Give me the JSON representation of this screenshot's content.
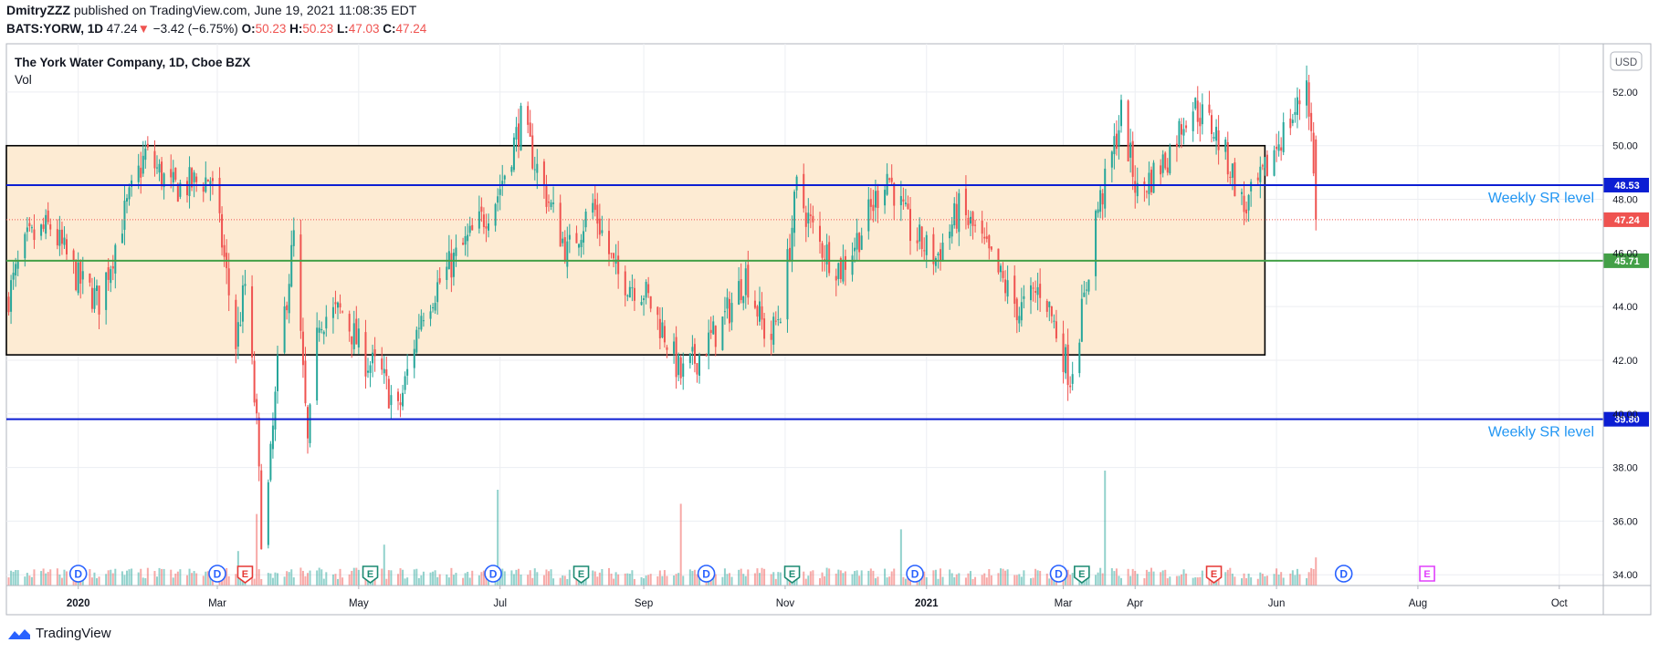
{
  "header": {
    "author": "DmitryZZZ",
    "published_text": "published on TradingView.com, June 19, 2021 11:08:35 EDT",
    "symbol": "BATS:YORW, 1D",
    "last": "47.24",
    "arrow": "▼",
    "change": "−3.42 (−6.75%)",
    "o_label": "O:",
    "o_val": "50.23",
    "h_label": "H:",
    "h_val": "50.23",
    "l_label": "L:",
    "l_val": "47.03",
    "c_label": "C:",
    "c_val": "47.24"
  },
  "footer": {
    "brand": "TradingView"
  },
  "colors": {
    "up": "#26a69a",
    "down": "#ef5350",
    "box_fill": "#fdebd3",
    "blue_line": "#0c1ed3",
    "green_line": "#43a047",
    "sr_text": "#2196f3",
    "event_d": "#2962ff",
    "event_e_green": "#1b8a72",
    "event_e_red": "#e53935",
    "event_e_pink": "#e040fb"
  },
  "chart_data": {
    "type": "candlestick",
    "title": "The York Water Company, 1D, Cboe BZX",
    "subtitle": "Vol",
    "currency": "USD",
    "y_ticks": [
      34.0,
      36.0,
      38.0,
      40.0,
      42.0,
      44.0,
      46.0,
      48.0,
      50.0,
      52.0
    ],
    "ylim": [
      33.6,
      53.8
    ],
    "x_ticks": [
      {
        "label": "2020",
        "date": "2020-01-01"
      },
      {
        "label": "Mar",
        "date": "2020-03-01"
      },
      {
        "label": "May",
        "date": "2020-05-01"
      },
      {
        "label": "Jul",
        "date": "2020-07-01"
      },
      {
        "label": "Sep",
        "date": "2020-09-01"
      },
      {
        "label": "Nov",
        "date": "2020-11-01"
      },
      {
        "label": "2021",
        "date": "2021-01-01"
      },
      {
        "label": "Mar",
        "date": "2021-03-01"
      },
      {
        "label": "Apr",
        "date": "2021-04-01"
      },
      {
        "label": "Jun",
        "date": "2021-06-01"
      },
      {
        "label": "Aug",
        "date": "2021-08-01"
      },
      {
        "label": "Oct",
        "date": "2021-10-01"
      }
    ],
    "xlim": [
      "2019-12-01",
      "2021-10-20"
    ],
    "range_box": {
      "from": "2019-12-01",
      "to": "2021-05-27",
      "low": 42.2,
      "high": 50.0
    },
    "levels": [
      {
        "value": 48.53,
        "label": "48.53",
        "text": "Weekly SR level",
        "color": "#0c1ed3"
      },
      {
        "value": 45.71,
        "label": "45.71",
        "text": "",
        "color": "#43a047"
      },
      {
        "value": 39.8,
        "label": "39.80",
        "text": "Weekly SR level",
        "color": "#0c1ed3"
      }
    ],
    "last_price": {
      "value": 47.24,
      "label": "47.24"
    },
    "price_path": [
      [
        "2019-12-01",
        44.2
      ],
      [
        "2019-12-10",
        46.4
      ],
      [
        "2019-12-20",
        47.0
      ],
      [
        "2020-01-01",
        45.0
      ],
      [
        "2020-01-10",
        44.2
      ],
      [
        "2020-01-20",
        47.2
      ],
      [
        "2020-01-30",
        49.7
      ],
      [
        "2020-02-10",
        48.4
      ],
      [
        "2020-02-20",
        48.6
      ],
      [
        "2020-02-27",
        48.8
      ],
      [
        "2020-03-03",
        46.4
      ],
      [
        "2020-03-09",
        42.6
      ],
      [
        "2020-03-13",
        44.8
      ],
      [
        "2020-03-18",
        39.5
      ],
      [
        "2020-03-20",
        35.6
      ],
      [
        "2020-03-23",
        37.2
      ],
      [
        "2020-03-27",
        41.6
      ],
      [
        "2020-04-03",
        46.6
      ],
      [
        "2020-04-09",
        38.8
      ],
      [
        "2020-04-14",
        43.6
      ],
      [
        "2020-04-24",
        43.8
      ],
      [
        "2020-05-04",
        42.0
      ],
      [
        "2020-05-10",
        41.6
      ],
      [
        "2020-05-18",
        40.0
      ],
      [
        "2020-05-28",
        43.8
      ],
      [
        "2020-06-10",
        45.6
      ],
      [
        "2020-06-20",
        46.8
      ],
      [
        "2020-06-30",
        48.2
      ],
      [
        "2020-07-10",
        50.9
      ],
      [
        "2020-07-20",
        48.4
      ],
      [
        "2020-07-30",
        46.0
      ],
      [
        "2020-08-10",
        47.8
      ],
      [
        "2020-08-20",
        45.2
      ],
      [
        "2020-09-01",
        44.6
      ],
      [
        "2020-09-10",
        43.0
      ],
      [
        "2020-09-17",
        41.4
      ],
      [
        "2020-09-25",
        42.2
      ],
      [
        "2020-10-05",
        43.4
      ],
      [
        "2020-10-15",
        45.2
      ],
      [
        "2020-10-25",
        42.6
      ],
      [
        "2020-10-31",
        44.2
      ],
      [
        "2020-11-06",
        48.4
      ],
      [
        "2020-11-15",
        46.4
      ],
      [
        "2020-11-25",
        45.4
      ],
      [
        "2020-12-05",
        47.0
      ],
      [
        "2020-12-15",
        49.0
      ],
      [
        "2020-12-25",
        46.8
      ],
      [
        "2021-01-05",
        45.8
      ],
      [
        "2021-01-15",
        47.6
      ],
      [
        "2021-01-22",
        46.8
      ],
      [
        "2021-02-01",
        45.2
      ],
      [
        "2021-02-10",
        43.8
      ],
      [
        "2021-02-20",
        44.8
      ],
      [
        "2021-03-01",
        42.2
      ],
      [
        "2021-03-04",
        41.4
      ],
      [
        "2021-03-10",
        44.2
      ],
      [
        "2021-03-15",
        47.4
      ],
      [
        "2021-03-20",
        48.8
      ],
      [
        "2021-03-26",
        51.2
      ],
      [
        "2021-04-02",
        48.2
      ],
      [
        "2021-04-15",
        49.6
      ],
      [
        "2021-04-25",
        51.6
      ],
      [
        "2021-05-05",
        50.6
      ],
      [
        "2021-05-12",
        49.2
      ],
      [
        "2021-05-18",
        47.6
      ],
      [
        "2021-05-25",
        48.6
      ],
      [
        "2021-06-02",
        50.2
      ],
      [
        "2021-06-10",
        51.4
      ],
      [
        "2021-06-14",
        52.6
      ],
      [
        "2021-06-16",
        50.4
      ],
      [
        "2021-06-18",
        47.24
      ]
    ],
    "volume_spikes": [
      {
        "date": "2020-03-10",
        "value": 0.27
      },
      {
        "date": "2020-03-18",
        "value": 0.56
      },
      {
        "date": "2020-05-12",
        "value": 0.32
      },
      {
        "date": "2020-06-20",
        "value": 0.55
      },
      {
        "date": "2020-06-30",
        "value": 0.75
      },
      {
        "date": "2020-09-17",
        "value": 0.64
      },
      {
        "date": "2020-12-21",
        "value": 0.44
      },
      {
        "date": "2021-03-19",
        "value": 0.9
      },
      {
        "date": "2021-06-18",
        "value": 0.22
      }
    ],
    "events": [
      {
        "label": "D",
        "date": "2020-01-01",
        "kind": "d"
      },
      {
        "label": "D",
        "date": "2020-03-01",
        "kind": "d"
      },
      {
        "label": "E",
        "date": "2020-03-13",
        "kind": "e-red"
      },
      {
        "label": "E",
        "date": "2020-05-06",
        "kind": "e-green"
      },
      {
        "label": "D",
        "date": "2020-06-28",
        "kind": "d"
      },
      {
        "label": "E",
        "date": "2020-08-05",
        "kind": "e-green"
      },
      {
        "label": "D",
        "date": "2020-09-28",
        "kind": "d"
      },
      {
        "label": "E",
        "date": "2020-11-04",
        "kind": "e-green"
      },
      {
        "label": "D",
        "date": "2020-12-27",
        "kind": "d"
      },
      {
        "label": "D",
        "date": "2021-02-27",
        "kind": "d"
      },
      {
        "label": "E",
        "date": "2021-03-09",
        "kind": "e-green"
      },
      {
        "label": "E",
        "date": "2021-05-05",
        "kind": "e-red"
      },
      {
        "label": "D",
        "date": "2021-06-30",
        "kind": "d"
      },
      {
        "label": "E",
        "date": "2021-08-05",
        "kind": "e-pink"
      }
    ]
  }
}
